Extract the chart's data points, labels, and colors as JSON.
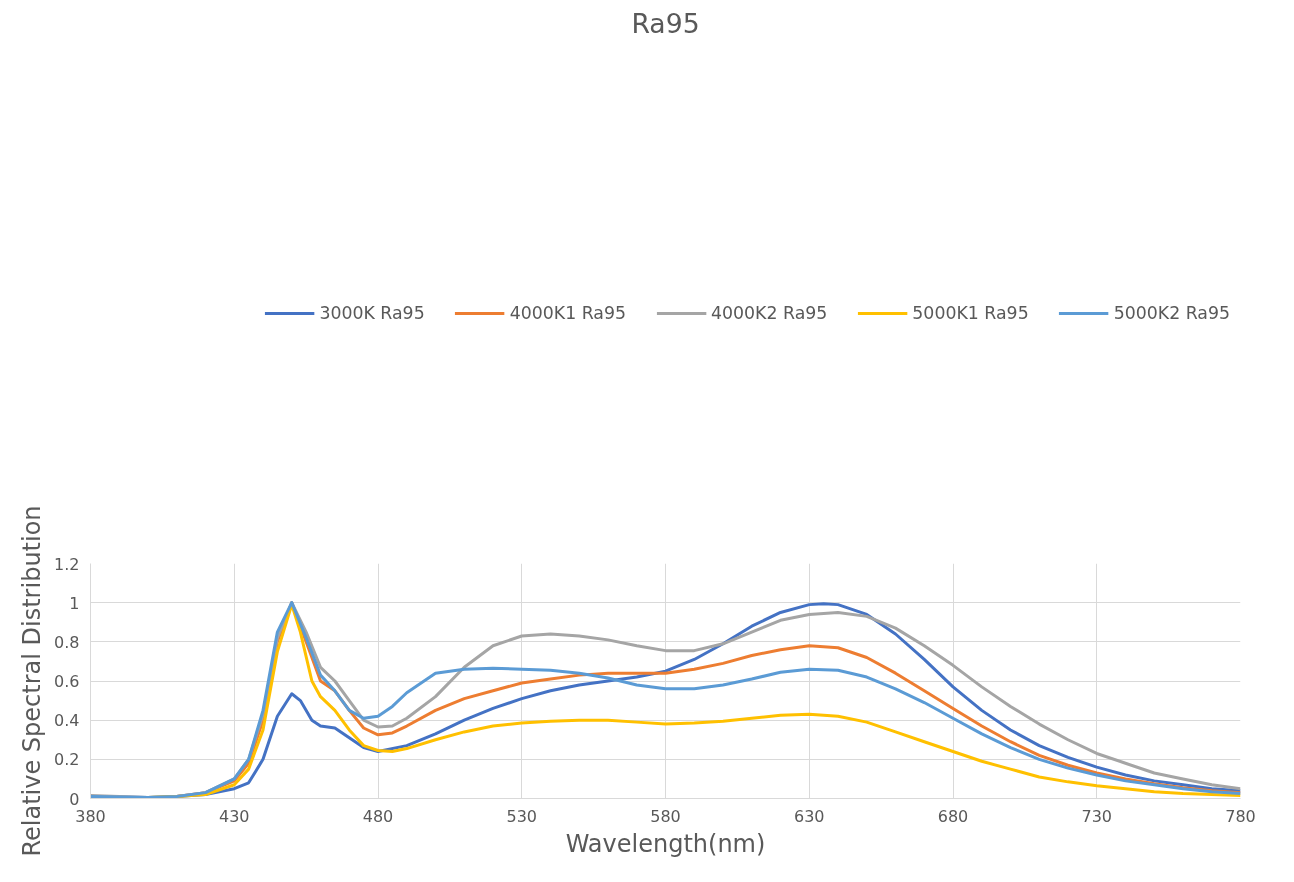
{
  "chart_data": {
    "type": "line",
    "title": "Ra95",
    "xlabel": "Wavelength(nm)",
    "ylabel": "Relative Spectral Distribution",
    "xlim": [
      380,
      780
    ],
    "xticks": [
      380,
      430,
      480,
      530,
      580,
      630,
      680,
      730,
      780
    ],
    "ylim": [
      0,
      1.2
    ],
    "yticks": [
      0,
      0.2,
      0.4,
      0.6,
      0.8,
      1,
      1.2
    ],
    "grid": true,
    "legend": "top",
    "marker": "none",
    "line_style": "solid",
    "series": [
      {
        "name": "3000K Ra95",
        "color": "#4472c4",
        "x": [
          380,
          400,
          410,
          420,
          430,
          435,
          440,
          445,
          450,
          453,
          457,
          460,
          465,
          470,
          475,
          480,
          490,
          500,
          510,
          520,
          530,
          540,
          550,
          560,
          570,
          580,
          590,
          600,
          610,
          620,
          630,
          635,
          640,
          650,
          660,
          670,
          680,
          690,
          700,
          710,
          720,
          730,
          740,
          750,
          760,
          770,
          780
        ],
        "values": [
          0.01,
          0.005,
          0.01,
          0.02,
          0.05,
          0.08,
          0.2,
          0.42,
          0.535,
          0.5,
          0.4,
          0.37,
          0.36,
          0.31,
          0.26,
          0.24,
          0.27,
          0.33,
          0.4,
          0.46,
          0.51,
          0.55,
          0.58,
          0.6,
          0.62,
          0.65,
          0.71,
          0.79,
          0.88,
          0.95,
          0.99,
          0.995,
          0.99,
          0.94,
          0.84,
          0.71,
          0.57,
          0.45,
          0.35,
          0.27,
          0.21,
          0.16,
          0.12,
          0.09,
          0.07,
          0.05,
          0.04
        ]
      },
      {
        "name": "4000K1 Ra95",
        "color": "#ed7d31",
        "x": [
          410,
          420,
          430,
          435,
          440,
          445,
          450,
          455,
          460,
          465,
          470,
          475,
          480,
          485,
          490,
          500,
          510,
          520,
          530,
          540,
          550,
          560,
          570,
          580,
          590,
          600,
          610,
          620,
          630,
          640,
          650,
          660,
          670,
          680,
          690,
          700,
          710,
          720,
          730,
          740,
          750,
          760,
          770,
          780
        ],
        "values": [
          0.01,
          0.03,
          0.09,
          0.18,
          0.4,
          0.8,
          1.0,
          0.8,
          0.6,
          0.55,
          0.45,
          0.36,
          0.325,
          0.335,
          0.37,
          0.45,
          0.51,
          0.55,
          0.59,
          0.61,
          0.63,
          0.64,
          0.64,
          0.64,
          0.66,
          0.69,
          0.73,
          0.76,
          0.78,
          0.77,
          0.72,
          0.64,
          0.55,
          0.46,
          0.37,
          0.29,
          0.22,
          0.17,
          0.13,
          0.1,
          0.075,
          0.055,
          0.04,
          0.03
        ]
      },
      {
        "name": "4000K2 Ra95",
        "color": "#a5a5a5",
        "x": [
          380,
          400,
          410,
          420,
          430,
          435,
          440,
          445,
          450,
          455,
          460,
          465,
          470,
          475,
          480,
          485,
          490,
          500,
          510,
          520,
          530,
          540,
          550,
          560,
          570,
          580,
          590,
          600,
          610,
          620,
          630,
          640,
          650,
          660,
          670,
          680,
          690,
          700,
          710,
          720,
          730,
          740,
          750,
          760,
          770,
          780
        ],
        "values": [
          0.015,
          0.005,
          0.01,
          0.03,
          0.1,
          0.2,
          0.43,
          0.82,
          1.0,
          0.85,
          0.67,
          0.6,
          0.5,
          0.4,
          0.365,
          0.37,
          0.41,
          0.52,
          0.67,
          0.78,
          0.83,
          0.84,
          0.83,
          0.81,
          0.78,
          0.755,
          0.755,
          0.79,
          0.85,
          0.91,
          0.94,
          0.95,
          0.93,
          0.87,
          0.78,
          0.68,
          0.57,
          0.47,
          0.38,
          0.3,
          0.23,
          0.18,
          0.13,
          0.1,
          0.07,
          0.05
        ]
      },
      {
        "name": "5000K1 Ra95",
        "color": "#ffc000",
        "x": [
          380,
          400,
          410,
          420,
          430,
          435,
          440,
          445,
          450,
          453,
          457,
          460,
          465,
          470,
          475,
          480,
          485,
          490,
          500,
          510,
          520,
          530,
          540,
          550,
          560,
          570,
          580,
          590,
          600,
          610,
          620,
          630,
          640,
          650,
          660,
          670,
          680,
          690,
          700,
          710,
          720,
          730,
          740,
          750,
          760,
          770,
          780
        ],
        "values": [
          0.005,
          0.005,
          0.01,
          0.02,
          0.07,
          0.15,
          0.35,
          0.75,
          0.99,
          0.85,
          0.6,
          0.52,
          0.45,
          0.35,
          0.27,
          0.245,
          0.24,
          0.255,
          0.3,
          0.34,
          0.37,
          0.385,
          0.395,
          0.4,
          0.4,
          0.39,
          0.38,
          0.385,
          0.395,
          0.41,
          0.425,
          0.43,
          0.42,
          0.39,
          0.34,
          0.29,
          0.24,
          0.19,
          0.15,
          0.11,
          0.085,
          0.065,
          0.05,
          0.035,
          0.025,
          0.02,
          0.015
        ]
      },
      {
        "name": "5000K2 Ra95",
        "color": "#5b9bd5",
        "x": [
          380,
          400,
          410,
          420,
          430,
          435,
          440,
          445,
          450,
          455,
          460,
          465,
          470,
          475,
          480,
          485,
          490,
          500,
          510,
          520,
          530,
          540,
          550,
          560,
          570,
          580,
          590,
          600,
          610,
          620,
          630,
          640,
          650,
          660,
          670,
          680,
          690,
          700,
          710,
          720,
          730,
          740,
          750,
          760,
          770,
          780
        ],
        "values": [
          0.01,
          0.005,
          0.01,
          0.03,
          0.1,
          0.2,
          0.45,
          0.85,
          1.0,
          0.82,
          0.63,
          0.55,
          0.45,
          0.41,
          0.42,
          0.47,
          0.54,
          0.64,
          0.66,
          0.665,
          0.66,
          0.655,
          0.64,
          0.615,
          0.58,
          0.56,
          0.56,
          0.58,
          0.61,
          0.645,
          0.66,
          0.655,
          0.62,
          0.56,
          0.49,
          0.41,
          0.33,
          0.26,
          0.2,
          0.155,
          0.12,
          0.09,
          0.07,
          0.05,
          0.035,
          0.025
        ]
      }
    ]
  }
}
